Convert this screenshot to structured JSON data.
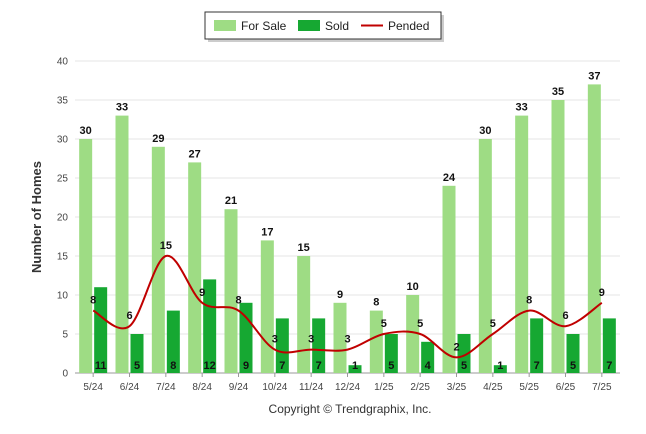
{
  "chart_data": {
    "type": "bar",
    "title": "",
    "xlabel": "",
    "ylabel": "Number of Homes",
    "ylim": [
      0,
      40
    ],
    "yticks": [
      0,
      5,
      10,
      15,
      20,
      25,
      30,
      35,
      40
    ],
    "grid": true,
    "legend_position": "top-center",
    "categories": [
      "5/24",
      "6/24",
      "7/24",
      "8/24",
      "9/24",
      "10/24",
      "11/24",
      "12/24",
      "1/25",
      "2/25",
      "3/25",
      "4/25",
      "5/25",
      "6/25",
      "7/25"
    ],
    "series": [
      {
        "name": "For Sale",
        "type": "bar",
        "color": "#9edc84",
        "values": [
          30,
          33,
          29,
          27,
          21,
          17,
          15,
          9,
          8,
          10,
          24,
          30,
          33,
          35,
          37
        ]
      },
      {
        "name": "Sold",
        "type": "bar",
        "color": "#16a832",
        "values": [
          11,
          5,
          8,
          12,
          9,
          7,
          7,
          1,
          5,
          4,
          5,
          1,
          7,
          5,
          7
        ]
      },
      {
        "name": "Pended",
        "type": "line",
        "color": "#c00000",
        "values": [
          8,
          6,
          15,
          9,
          8,
          3,
          3,
          3,
          5,
          5,
          2,
          5,
          8,
          6,
          9
        ]
      }
    ]
  },
  "copyright": "Copyright © Trendgraphix, Inc."
}
